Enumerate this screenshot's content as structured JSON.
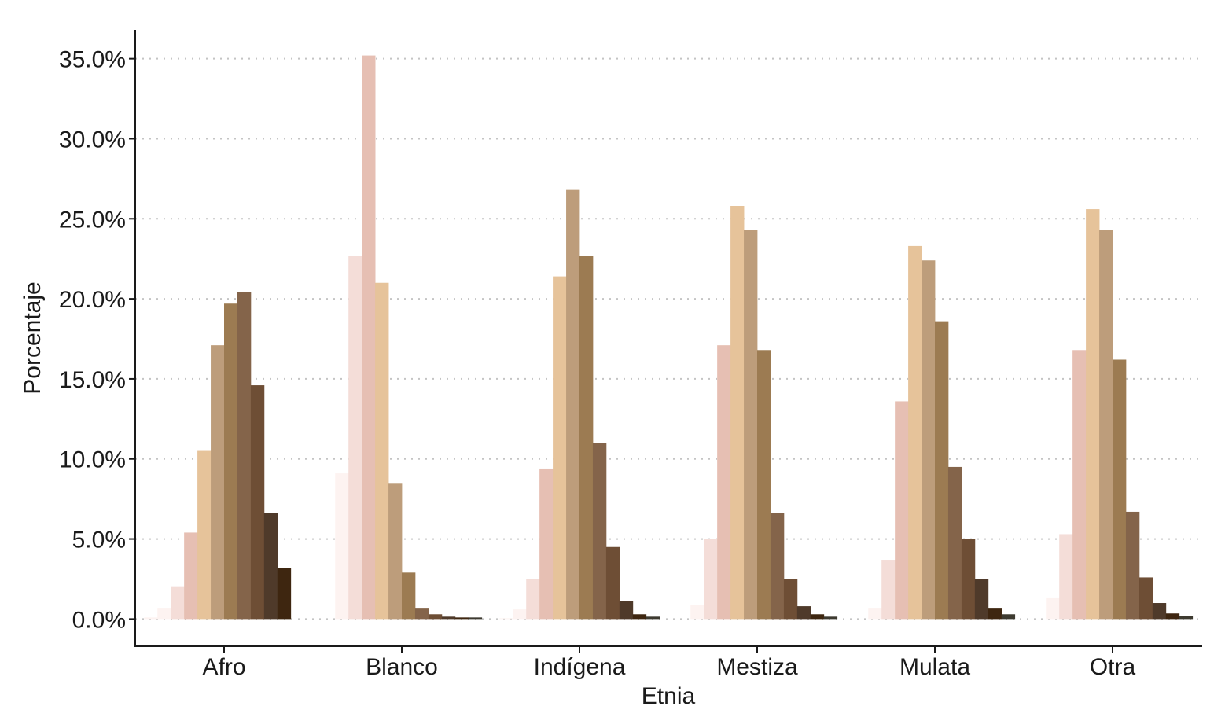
{
  "chart_data": {
    "type": "bar",
    "xlabel": "Etnia",
    "ylabel": "Porcentaje",
    "categories": [
      "Afro",
      "Blanco",
      "Indígena",
      "Mestiza",
      "Mulata",
      "Otra"
    ],
    "yticks": [
      0,
      5,
      10,
      15,
      20,
      25,
      30,
      35
    ],
    "ytick_labels": [
      "0.0%",
      "5.0%",
      "10.0%",
      "15.0%",
      "20.0%",
      "25.0%",
      "30.0%",
      "35.0%"
    ],
    "ylim": [
      -1.7,
      36.8
    ],
    "grid": "horizontal dotted",
    "legend": "none",
    "colors": [
      "#fdf3f1",
      "#f4ddd8",
      "#e6bfb3",
      "#e6c39a",
      "#bd9d7b",
      "#9c7b52",
      "#84644a",
      "#6e4e35",
      "#4f3a2a",
      "#3e2610",
      "#3d3a30"
    ],
    "series": [
      {
        "values": [
          0.1,
          0.0,
          0.05,
          0.0,
          0.0,
          0.0
        ]
      },
      {
        "values": [
          0.7,
          9.1,
          0.6,
          0.9,
          0.7,
          1.3
        ]
      },
      {
        "values": [
          2.0,
          22.7,
          2.5,
          5.0,
          3.7,
          5.3
        ]
      },
      {
        "values": [
          5.4,
          35.2,
          9.4,
          17.1,
          13.6,
          16.8
        ]
      },
      {
        "values": [
          10.5,
          21.0,
          21.4,
          25.8,
          23.3,
          25.6
        ]
      },
      {
        "values": [
          17.1,
          8.5,
          26.8,
          24.3,
          22.4,
          24.3
        ]
      },
      {
        "values": [
          19.7,
          2.9,
          22.7,
          16.8,
          18.6,
          16.2
        ]
      },
      {
        "values": [
          20.4,
          0.7,
          11.0,
          6.6,
          9.5,
          6.7
        ]
      },
      {
        "values": [
          14.6,
          0.3,
          4.5,
          2.5,
          5.0,
          2.6
        ]
      },
      {
        "values": [
          6.6,
          0.15,
          1.1,
          0.8,
          2.5,
          1.0
        ]
      },
      {
        "values": [
          3.2,
          0.1,
          0.3,
          0.3,
          0.7,
          0.35
        ]
      },
      {
        "values": [
          0.0,
          0.1,
          0.15,
          0.15,
          0.3,
          0.2
        ]
      }
    ],
    "series_colors": [
      "#fdf3f1",
      "#fdf3f1",
      "#f4ddd8",
      "#e6bfb3",
      "#e6c39a",
      "#bd9d7b",
      "#9c7b52",
      "#84644a",
      "#6e4e35",
      "#4f3a2a",
      "#3e2610",
      "#3d3a30"
    ]
  }
}
